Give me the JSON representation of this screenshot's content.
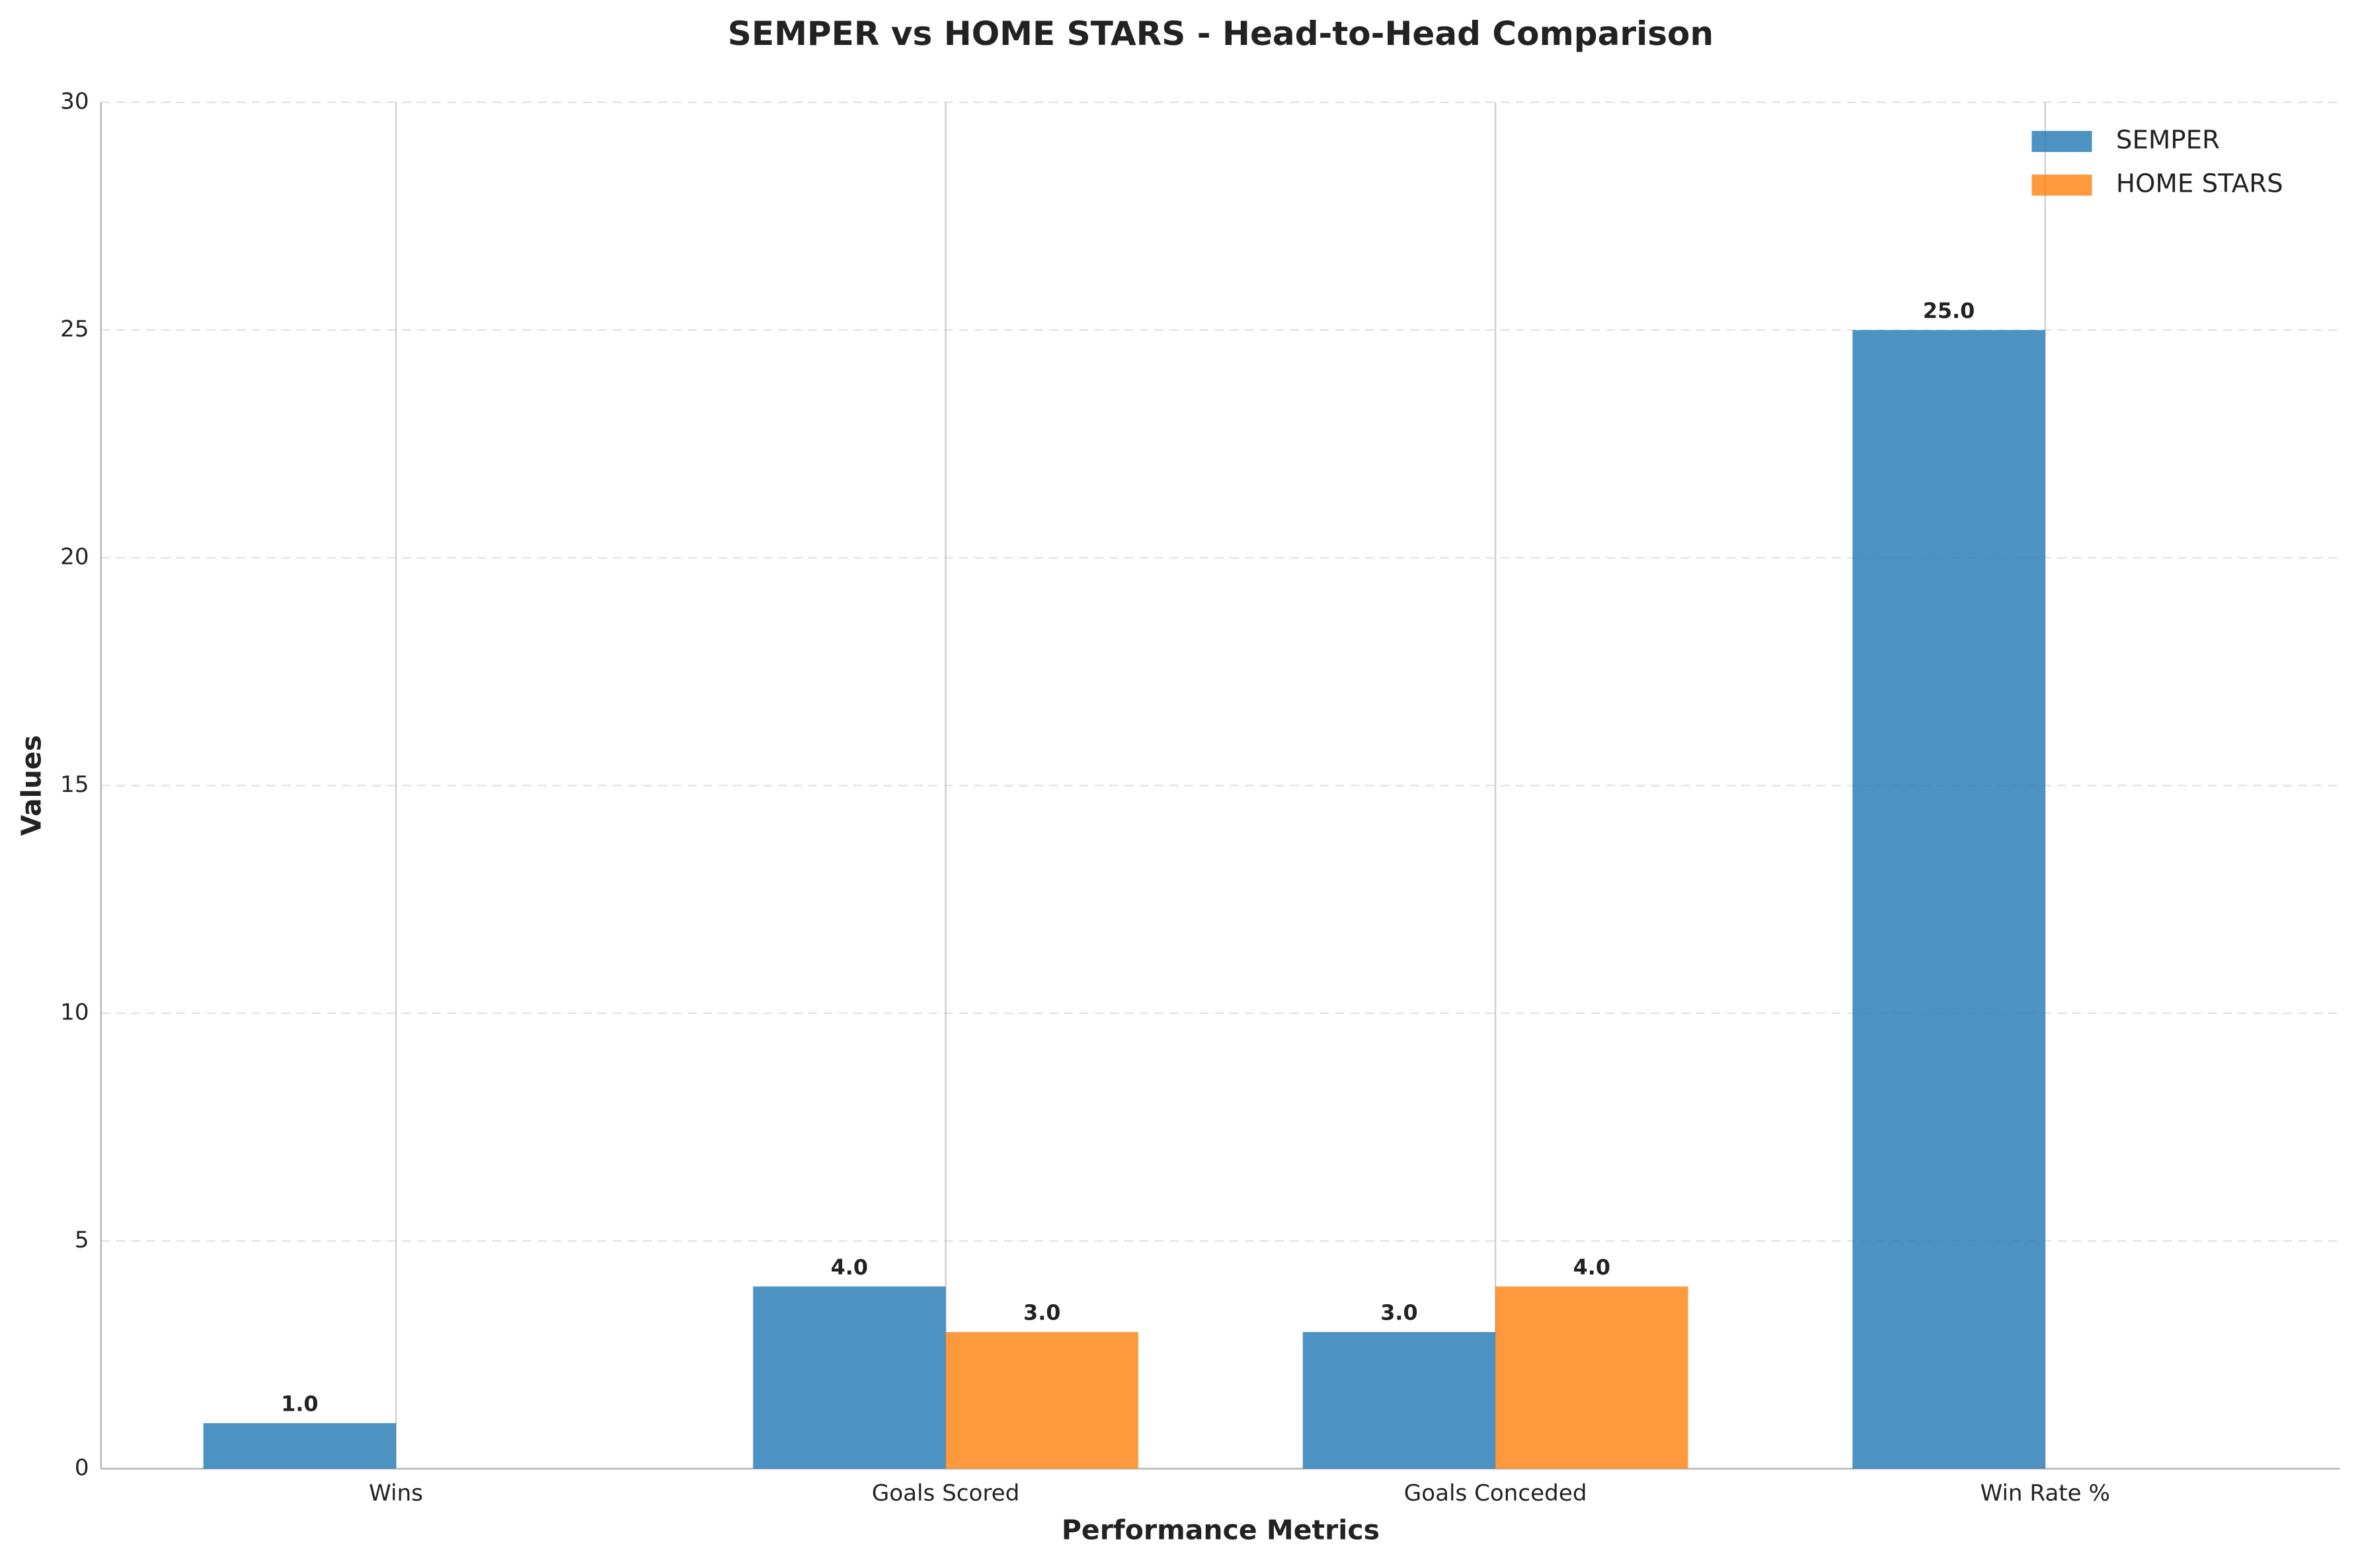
{
  "chart_data": {
    "type": "bar",
    "title": "SEMPER vs HOME STARS - Head-to-Head Comparison",
    "x_label": "Performance Metrics",
    "y_label": "Values",
    "categories": [
      "Wins",
      "Goals Scored",
      "Goals Conceded",
      "Win Rate %"
    ],
    "series": [
      {
        "name": "SEMPER",
        "color": "#1f77b4",
        "values": [
          1,
          4,
          3,
          25
        ],
        "value_labels": [
          "1.0",
          "4.0",
          "3.0",
          "25.0"
        ]
      },
      {
        "name": "HOME STARS",
        "color": "#ff7f0e",
        "values": [
          0,
          3,
          4,
          0
        ],
        "value_labels": [
          null,
          "3.0",
          "4.0",
          null
        ]
      }
    ],
    "ylim": [
      0,
      30
    ],
    "yticks": [
      0,
      5,
      10,
      15,
      20,
      25,
      30
    ],
    "grid": true,
    "legend": "upper right"
  }
}
